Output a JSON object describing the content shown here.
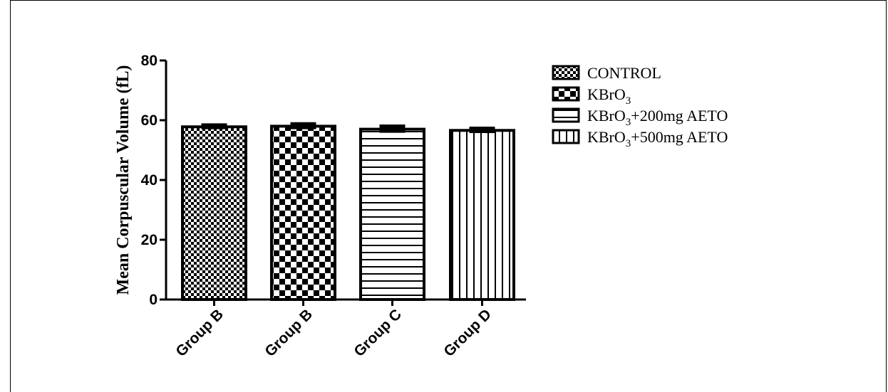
{
  "chart_data": {
    "type": "bar",
    "categories": [
      "Group B",
      "Group B",
      "Group C",
      "Group D"
    ],
    "series": [
      {
        "name": "CONTROL",
        "pattern": "fine-checker",
        "value": 57.8,
        "error": 0.8
      },
      {
        "name": "KBrO3",
        "name_base": "KBrO",
        "name_sub": "3",
        "name_rest": "",
        "pattern": "coarse-checker",
        "value": 58.0,
        "error": 1.0
      },
      {
        "name": "KBrO3+200mg AETO",
        "name_base": "KBrO",
        "name_sub": "3",
        "name_rest": "+200mg AETO",
        "pattern": "horizontal-lines",
        "value": 57.0,
        "error": 1.2
      },
      {
        "name": "KBrO3+500mg AETO",
        "name_base": "KBrO",
        "name_sub": "3",
        "name_rest": "+500mg AETO",
        "pattern": "vertical-lines",
        "value": 56.6,
        "error": 0.9
      }
    ],
    "ylabel": "Mean Corpuscular Volume (fL)",
    "xlabel": "",
    "ylim": [
      0,
      80
    ],
    "yticks": [
      0,
      20,
      40,
      60,
      80
    ],
    "grid": false,
    "legend": "right",
    "colors": {
      "bar_stroke": "#000000",
      "fill_pattern": "#000000",
      "background": "#ffffff"
    }
  }
}
